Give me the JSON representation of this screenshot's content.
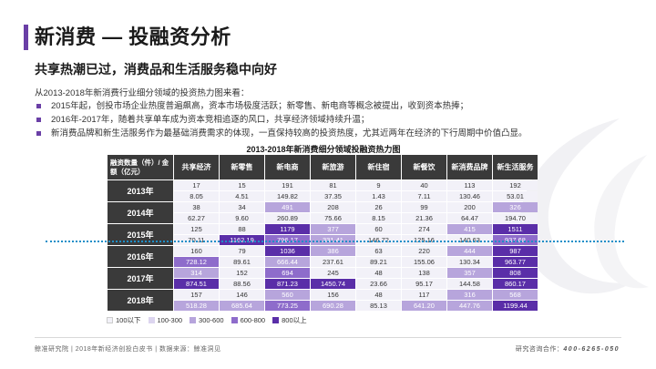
{
  "header": {
    "title": "新消费 — 投融资分析",
    "subtitle": "共享热潮已过，消费品和生活服务稳中向好"
  },
  "intro": {
    "lead": "从2013-2018年新消费行业细分领域的投资热力图来看：",
    "bullets": [
      "2015年起，创投市场企业热度普遍飙高，资本市场极度活跃；新零售、新电商等概念被提出，收到资本热捧；",
      "2016年-2017年，随着共享单车成为资本竞相追逐的风口，共享经济领域持续升温；",
      "新消费品牌和新生活服务作为最基础消费需求的体现，一直保持较高的投资热度，尤其近两年在经济的下行周期中价值凸显。"
    ]
  },
  "table": {
    "title": "2013-2018年新消费细分领域投融资热力图",
    "corner_label": "融资数量（件）/ 金额（亿元）",
    "categories": [
      "共享经济",
      "新零售",
      "新电商",
      "新旅游",
      "新住宿",
      "新餐饮",
      "新消费品牌",
      "新生活服务"
    ],
    "rows": [
      {
        "year": "2013年",
        "count": [
          "17",
          "15",
          "191",
          "81",
          "9",
          "40",
          "113",
          "192"
        ],
        "amount": [
          "8.05",
          "4.51",
          "149.82",
          "37.35",
          "1.43",
          "7.11",
          "130.46",
          "53.01"
        ]
      },
      {
        "year": "2014年",
        "count": [
          "38",
          "34",
          "491",
          "208",
          "26",
          "99",
          "200",
          "326"
        ],
        "amount": [
          "62.27",
          "9.60",
          "260.89",
          "75.66",
          "8.15",
          "21.36",
          "64.47",
          "194.70"
        ]
      },
      {
        "year": "2015年",
        "count": [
          "125",
          "88",
          "1179",
          "377",
          "60",
          "274",
          "415",
          "1511"
        ],
        "amount": [
          "70.11",
          "1162.19",
          "796.17",
          "331.41",
          "146.72",
          "125.16",
          "140.63",
          "937.68"
        ]
      },
      {
        "year": "2016年",
        "count": [
          "160",
          "79",
          "1036",
          "386",
          "63",
          "220",
          "444",
          "987"
        ],
        "amount": [
          "728.12",
          "89.61",
          "666.44",
          "237.61",
          "89.21",
          "155.06",
          "130.34",
          "963.77"
        ]
      },
      {
        "year": "2017年",
        "count": [
          "314",
          "152",
          "694",
          "245",
          "48",
          "138",
          "357",
          "808"
        ],
        "amount": [
          "874.51",
          "88.56",
          "871.23",
          "1450.74",
          "23.66",
          "95.17",
          "144.58",
          "860.17"
        ]
      },
      {
        "year": "2018年",
        "count": [
          "157",
          "146",
          "560",
          "156",
          "48",
          "117",
          "316",
          "568"
        ],
        "amount": [
          "518.28",
          "685.64",
          "773.25",
          "690.28",
          "85.13",
          "641.20",
          "447.76",
          "1199.44"
        ]
      }
    ],
    "levels": {
      "count": [
        [
          1,
          1,
          1,
          1,
          1,
          1,
          1,
          1
        ],
        [
          1,
          1,
          3,
          1,
          1,
          1,
          1,
          3
        ],
        [
          1,
          1,
          5,
          3,
          1,
          1,
          3,
          5
        ],
        [
          1,
          1,
          5,
          3,
          1,
          1,
          3,
          5
        ],
        [
          3,
          1,
          4,
          1,
          1,
          1,
          3,
          5
        ],
        [
          1,
          1,
          3,
          1,
          1,
          1,
          3,
          3
        ]
      ],
      "amount": [
        [
          1,
          1,
          1,
          1,
          1,
          1,
          1,
          1
        ],
        [
          1,
          1,
          1,
          1,
          1,
          1,
          1,
          1
        ],
        [
          1,
          5,
          4,
          3,
          1,
          1,
          1,
          4
        ],
        [
          4,
          1,
          3,
          1,
          1,
          1,
          1,
          5
        ],
        [
          5,
          1,
          5,
          5,
          1,
          1,
          1,
          5
        ],
        [
          3,
          3,
          4,
          3,
          1,
          3,
          3,
          5
        ]
      ]
    }
  },
  "legend": [
    {
      "label": "100以下",
      "color": "#f2f1f8"
    },
    {
      "label": "100-300",
      "color": "#dcd5ef"
    },
    {
      "label": "300-600",
      "color": "#b7a5dc"
    },
    {
      "label": "600-800",
      "color": "#8e6ccb"
    },
    {
      "label": "800以上",
      "color": "#5a2ea8"
    }
  ],
  "footer": {
    "left": "鲸准研究院 | 2018年新经济创投白皮书 | 数据来源：鲸准洞见",
    "right_label": "研究咨询合作：",
    "phone": "400-6265-050"
  }
}
